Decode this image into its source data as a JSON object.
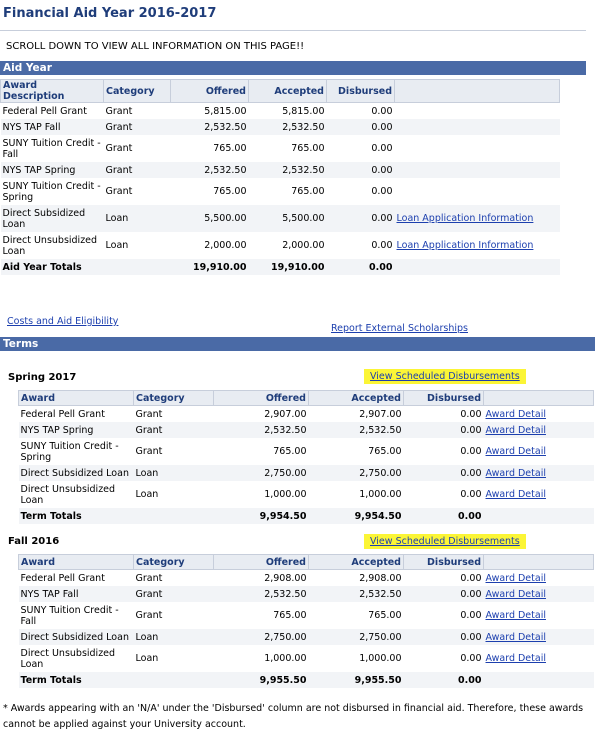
{
  "title": "Financial Aid Year 2016-2017",
  "scroll_note": "SCROLL DOWN TO VIEW ALL INFORMATION ON THIS PAGE!!",
  "aid_year": {
    "band": "Aid Year",
    "headers": [
      "Award Description",
      "Category",
      "Offered",
      "Accepted",
      "Disbursed"
    ],
    "rows": [
      {
        "desc": "Federal Pell Grant",
        "cat": "Grant",
        "off": "5,815.00",
        "acc": "5,815.00",
        "dis": "0.00",
        "link": ""
      },
      {
        "desc": "NYS TAP Fall",
        "cat": "Grant",
        "off": "2,532.50",
        "acc": "2,532.50",
        "dis": "0.00",
        "link": ""
      },
      {
        "desc": "SUNY Tuition Credit - Fall",
        "cat": "Grant",
        "off": "765.00",
        "acc": "765.00",
        "dis": "0.00",
        "link": ""
      },
      {
        "desc": "NYS TAP Spring",
        "cat": "Grant",
        "off": "2,532.50",
        "acc": "2,532.50",
        "dis": "0.00",
        "link": ""
      },
      {
        "desc": "SUNY Tuition Credit - Spring",
        "cat": "Grant",
        "off": "765.00",
        "acc": "765.00",
        "dis": "0.00",
        "link": ""
      },
      {
        "desc": "Direct Subsidized Loan",
        "cat": "Loan",
        "off": "5,500.00",
        "acc": "5,500.00",
        "dis": "0.00",
        "link": "Loan Application Information"
      },
      {
        "desc": "Direct Unsubsidized Loan",
        "cat": "Loan",
        "off": "2,000.00",
        "acc": "2,000.00",
        "dis": "0.00",
        "link": "Loan Application Information"
      }
    ],
    "totals": {
      "label": "Aid Year Totals",
      "off": "19,910.00",
      "acc": "19,910.00",
      "dis": "0.00"
    }
  },
  "links": {
    "costs": "Costs and Aid Eligibility",
    "external": "Report External Scholarships"
  },
  "terms": {
    "band": "Terms",
    "headers": [
      "Award",
      "Category",
      "Offered",
      "Accepted",
      "Disbursed"
    ],
    "spring": {
      "title": "Spring 2017",
      "view": "View Scheduled Disbursements",
      "rows": [
        {
          "desc": "Federal Pell Grant",
          "cat": "Grant",
          "off": "2,907.00",
          "acc": "2,907.00",
          "dis": "0.00",
          "link": "Award Detail"
        },
        {
          "desc": "NYS TAP Spring",
          "cat": "Grant",
          "off": "2,532.50",
          "acc": "2,532.50",
          "dis": "0.00",
          "link": "Award Detail"
        },
        {
          "desc": "SUNY Tuition Credit - Spring",
          "cat": "Grant",
          "off": "765.00",
          "acc": "765.00",
          "dis": "0.00",
          "link": "Award Detail"
        },
        {
          "desc": "Direct Subsidized Loan",
          "cat": "Loan",
          "off": "2,750.00",
          "acc": "2,750.00",
          "dis": "0.00",
          "link": "Award Detail"
        },
        {
          "desc": "Direct Unsubsidized Loan",
          "cat": "Loan",
          "off": "1,000.00",
          "acc": "1,000.00",
          "dis": "0.00",
          "link": "Award Detail"
        }
      ],
      "totals": {
        "label": "Term Totals",
        "off": "9,954.50",
        "acc": "9,954.50",
        "dis": "0.00"
      }
    },
    "fall": {
      "title": "Fall 2016",
      "view": "View Scheduled Disbursements",
      "rows": [
        {
          "desc": "Federal Pell Grant",
          "cat": "Grant",
          "off": "2,908.00",
          "acc": "2,908.00",
          "dis": "0.00",
          "link": "Award Detail"
        },
        {
          "desc": "NYS TAP Fall",
          "cat": "Grant",
          "off": "2,532.50",
          "acc": "2,532.50",
          "dis": "0.00",
          "link": "Award Detail"
        },
        {
          "desc": "SUNY Tuition Credit - Fall",
          "cat": "Grant",
          "off": "765.00",
          "acc": "765.00",
          "dis": "0.00",
          "link": "Award Detail"
        },
        {
          "desc": "Direct Subsidized Loan",
          "cat": "Loan",
          "off": "2,750.00",
          "acc": "2,750.00",
          "dis": "0.00",
          "link": "Award Detail"
        },
        {
          "desc": "Direct Unsubsidized Loan",
          "cat": "Loan",
          "off": "1,000.00",
          "acc": "1,000.00",
          "dis": "0.00",
          "link": "Award Detail"
        }
      ],
      "totals": {
        "label": "Term Totals",
        "off": "9,955.50",
        "acc": "9,955.50",
        "dis": "0.00"
      }
    }
  },
  "footnote": "* Awards appearing with an 'N/A' under the 'Disbursed' column are not disbursed in financial aid. Therefore, these awards cannot be applied against your University account."
}
